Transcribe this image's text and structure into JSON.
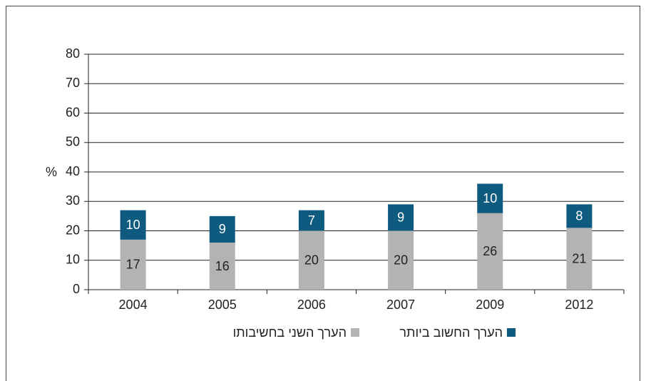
{
  "chart_data": {
    "type": "stacked_bar",
    "categories": [
      "2004",
      "2005",
      "2006",
      "2007",
      "2009",
      "2012"
    ],
    "series": [
      {
        "name": "הערך השני בחשיבותו",
        "color": "#b3b3b3",
        "values": [
          17,
          16,
          20,
          20,
          26,
          21
        ]
      },
      {
        "name": "הערך החשוב ביותר",
        "color": "#0f5a7f",
        "values": [
          10,
          9,
          7,
          9,
          10,
          8
        ]
      }
    ],
    "y_label": "%",
    "ylim": [
      0,
      80
    ],
    "yticks": [
      0,
      10,
      20,
      30,
      40,
      50,
      60,
      70,
      80
    ],
    "grid": true,
    "legend": "bottom"
  }
}
